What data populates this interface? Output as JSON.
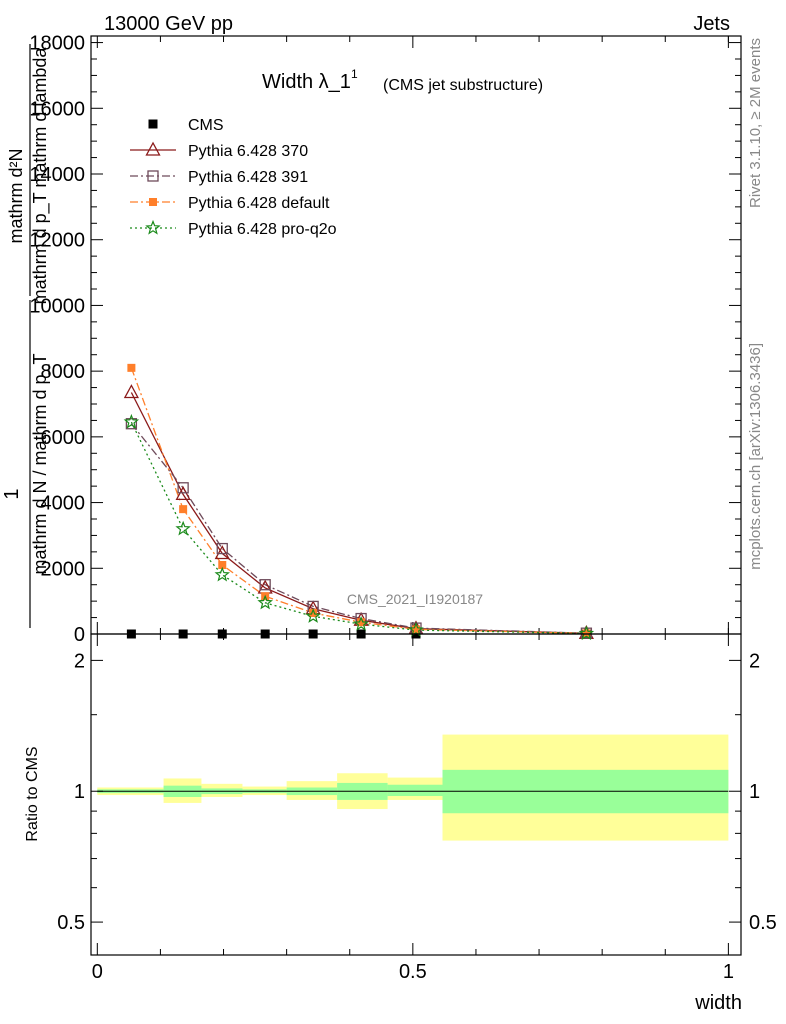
{
  "header": {
    "left": "13000 GeV pp",
    "right": "Jets"
  },
  "side_labels": {
    "rivet": "Rivet 3.1.10, ≥ 2M events",
    "mcplots": "mcplots.cern.ch [arXiv:1306.3436]"
  },
  "watermark": "CMS_2021_I1920187",
  "chart_data": [
    {
      "type": "line",
      "title": "Width λ_1",
      "title_sup": "1",
      "subtitle": "(CMS jet substructure)",
      "ylabel_top": "1",
      "ylabel_bottom": "mathrm d N / mathrm d p_T",
      "ylabel_inner_num": "mathrm d²N",
      "ylabel_inner_den": "mathrm d p_T mathrm d lambda",
      "ylim": [
        0,
        18200
      ],
      "xlim": [
        -0.01,
        1.02
      ],
      "y_ticks": [
        0,
        2000,
        4000,
        6000,
        8000,
        10000,
        12000,
        14000,
        16000,
        18000
      ],
      "y_tick_labels": [
        "0",
        "2000",
        "4000",
        "6000",
        "8000",
        "10000",
        "12000",
        "14000",
        "16000",
        "18000"
      ],
      "legend_position": "top-left",
      "x": [
        0.054,
        0.136,
        0.198,
        0.266,
        0.342,
        0.418,
        0.505,
        0.775
      ],
      "series": [
        {
          "name": "CMS",
          "color": "#000000",
          "marker": "square-filled",
          "line": "none",
          "values": [
            0,
            0,
            0,
            0,
            0,
            0,
            0,
            0
          ]
        },
        {
          "name": "Pythia 6.428 370",
          "color": "#8b1a1a",
          "marker": "triangle-open",
          "line": "solid",
          "values": [
            7350,
            4250,
            2450,
            1400,
            770,
            420,
            160,
            20
          ]
        },
        {
          "name": "Pythia 6.428 391",
          "color": "#6e4a5a",
          "marker": "square-open",
          "line": "dashdot",
          "values": [
            6400,
            4450,
            2600,
            1500,
            840,
            470,
            180,
            25
          ]
        },
        {
          "name": "Pythia 6.428 default",
          "color": "#ff7f2a",
          "marker": "square-filled-small",
          "line": "dashdot",
          "values": [
            8100,
            3800,
            2100,
            1150,
            640,
            360,
            140,
            18
          ]
        },
        {
          "name": "Pythia 6.428 pro-q2o",
          "color": "#1a8a1a",
          "marker": "star-open",
          "line": "dotted",
          "values": [
            6450,
            3200,
            1800,
            950,
            540,
            300,
            120,
            15
          ]
        }
      ]
    },
    {
      "type": "area",
      "ylabel": "Ratio to CMS",
      "xlabel": "width",
      "ylim": [
        0.42,
        2.3
      ],
      "log_y": true,
      "xlim": [
        -0.01,
        1.02
      ],
      "x_ticks": [
        0,
        0.5,
        1
      ],
      "x_tick_labels": [
        "0",
        "0.5",
        "1"
      ],
      "y_ticks": [
        0.5,
        1,
        2
      ],
      "y_tick_labels": [
        "0.5",
        "1",
        "2"
      ],
      "reference_line": 1,
      "bands": {
        "colors": {
          "inner": "#99ff99",
          "outer": "#ffff99"
        },
        "bins": [
          {
            "x0": 0.0,
            "x1": 0.105,
            "inner": [
              0.99,
              1.01
            ],
            "outer": [
              0.98,
              1.02
            ]
          },
          {
            "x0": 0.105,
            "x1": 0.165,
            "inner": [
              0.97,
              1.03
            ],
            "outer": [
              0.94,
              1.07
            ]
          },
          {
            "x0": 0.165,
            "x1": 0.23,
            "inner": [
              0.985,
              1.015
            ],
            "outer": [
              0.97,
              1.04
            ]
          },
          {
            "x0": 0.23,
            "x1": 0.3,
            "inner": [
              0.99,
              1.01
            ],
            "outer": [
              0.98,
              1.025
            ]
          },
          {
            "x0": 0.3,
            "x1": 0.38,
            "inner": [
              0.98,
              1.02
            ],
            "outer": [
              0.955,
              1.055
            ]
          },
          {
            "x0": 0.38,
            "x1": 0.46,
            "inner": [
              0.955,
              1.045
            ],
            "outer": [
              0.91,
              1.1
            ]
          },
          {
            "x0": 0.46,
            "x1": 0.547,
            "inner": [
              0.975,
              1.035
            ],
            "outer": [
              0.955,
              1.075
            ]
          },
          {
            "x0": 0.547,
            "x1": 1.0,
            "inner": [
              0.89,
              1.12
            ],
            "outer": [
              0.77,
              1.35
            ]
          }
        ]
      }
    }
  ]
}
